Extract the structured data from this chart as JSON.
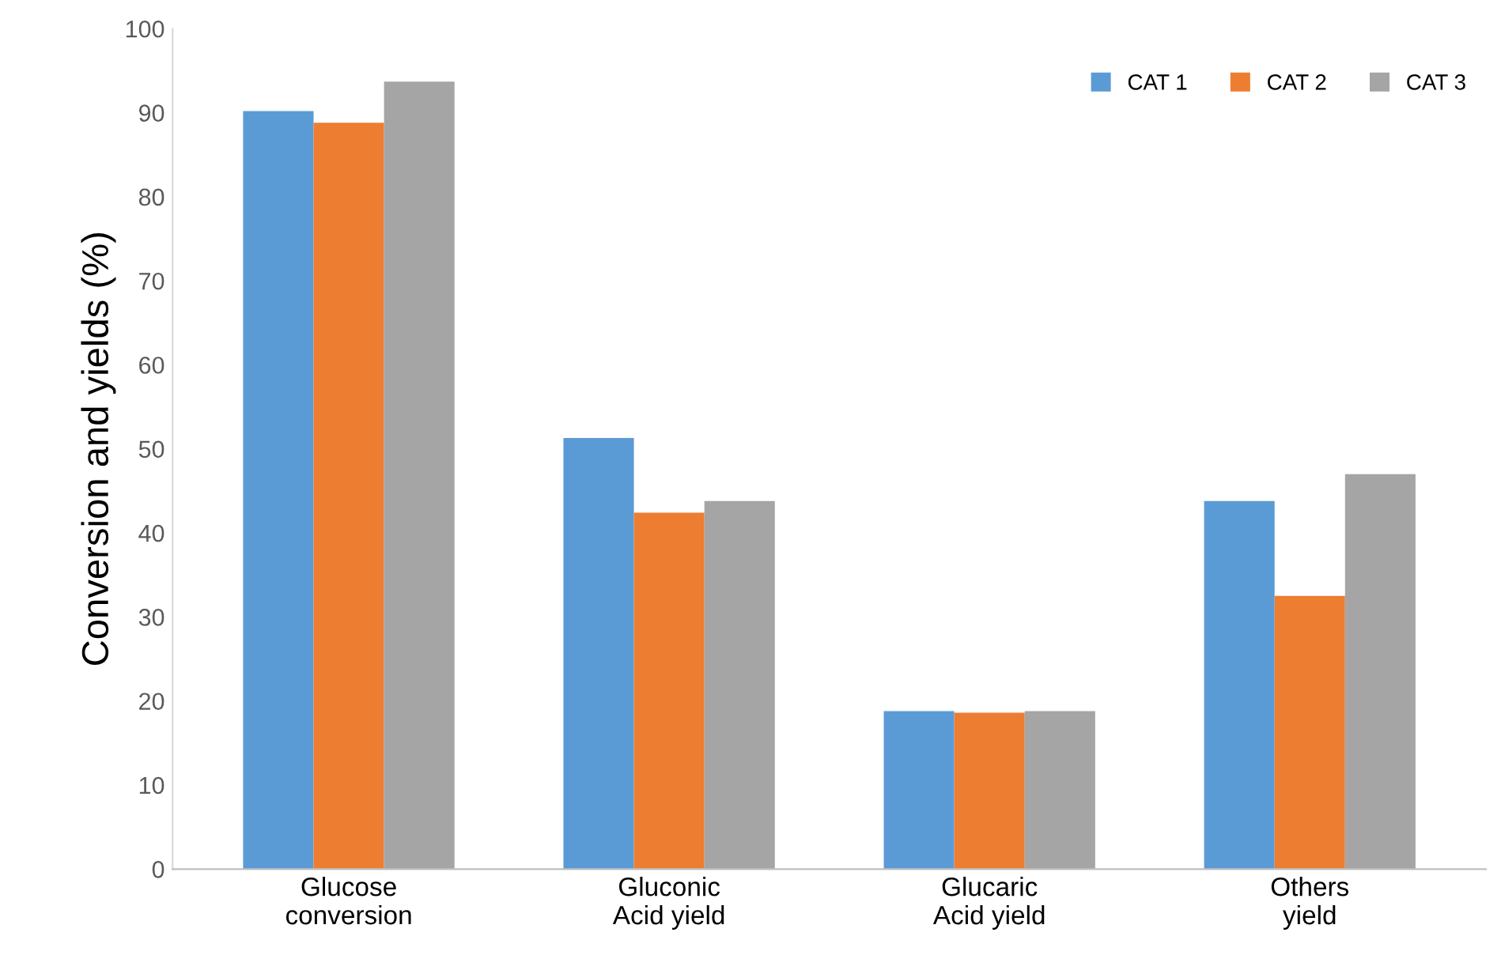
{
  "chart_data": {
    "type": "bar",
    "ylabel": "Conversion and yields (%)",
    "categories": [
      "Glucose\nconversion",
      "Gluconic\nAcid yield",
      "Glucaric\nAcid yield",
      "Others\nyield"
    ],
    "series": [
      {
        "name": "CAT 1",
        "color": "#5b9bd5",
        "values": [
          90.2,
          51.3,
          18.8,
          43.8
        ]
      },
      {
        "name": "CAT 2",
        "color": "#ed7d31",
        "values": [
          88.8,
          42.4,
          18.6,
          32.5
        ]
      },
      {
        "name": "CAT 3",
        "color": "#a5a5a5",
        "values": [
          93.7,
          43.8,
          18.8,
          47.0
        ]
      }
    ],
    "ylim": [
      0,
      100
    ],
    "yticks": [
      0,
      10,
      20,
      30,
      40,
      50,
      60,
      70,
      80,
      90,
      100
    ],
    "grid": false,
    "legend": "top right"
  }
}
